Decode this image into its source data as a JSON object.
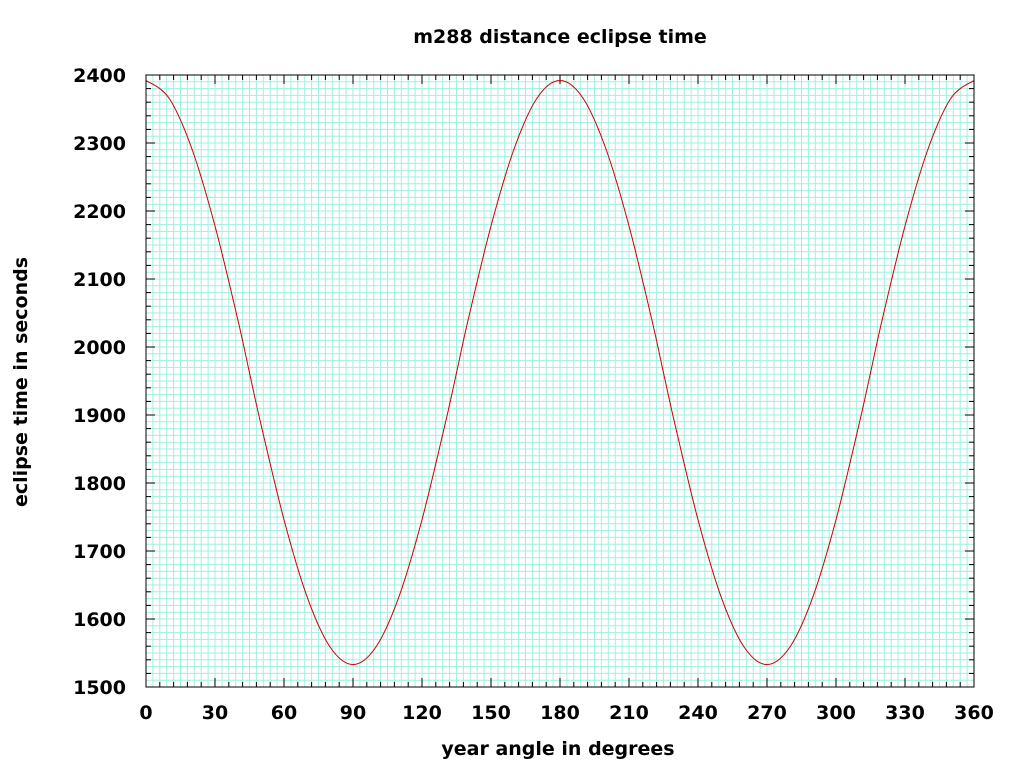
{
  "chart_data": {
    "type": "line",
    "title": "m288 distance eclipse time",
    "xlabel": "year angle in degrees",
    "ylabel": "eclipse time in seconds",
    "xlim": [
      0,
      360
    ],
    "ylim": [
      1500,
      2400
    ],
    "xticks": [
      "0",
      "30",
      "60",
      "90",
      "120",
      "150",
      "180",
      "210",
      "240",
      "270",
      "300",
      "330",
      "360"
    ],
    "yticks": [
      "1500",
      "1600",
      "1700",
      "1800",
      "1900",
      "2000",
      "2100",
      "2200",
      "2300",
      "2400"
    ],
    "grid": true,
    "minor_grid": true,
    "legend": "none",
    "colors": {
      "line": "#cc0000",
      "grid": "#a0f0e0",
      "frame": "#000000"
    },
    "series": [
      {
        "x": [
          0,
          10,
          20,
          30,
          40,
          45,
          50,
          60,
          70,
          80,
          90,
          100,
          110,
          120,
          130,
          135,
          140,
          150,
          160,
          170,
          180,
          190,
          200,
          210,
          220,
          225,
          230,
          240,
          250,
          260,
          270,
          280,
          290,
          300,
          310,
          315,
          320,
          330,
          340,
          350,
          360
        ],
        "y": [
          2392,
          2366,
          2291,
          2178,
          2039,
          1962,
          1886,
          1746,
          1633,
          1559,
          1533,
          1559,
          1633,
          1746,
          1886,
          1962,
          2039,
          2178,
          2291,
          2366,
          2392,
          2366,
          2291,
          2178,
          2039,
          1962,
          1886,
          1746,
          1633,
          1559,
          1533,
          1559,
          1633,
          1746,
          1886,
          1962,
          2039,
          2178,
          2291,
          2366,
          2392
        ]
      }
    ]
  }
}
